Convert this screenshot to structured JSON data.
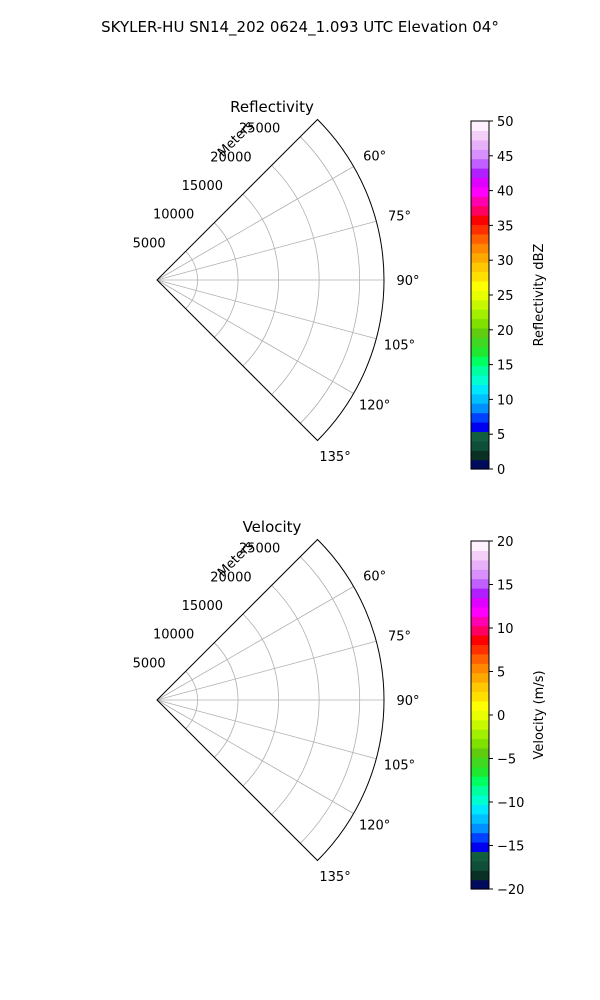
{
  "figure_title": "SKYLER-HU  SN14_202  0624_1.093 UTC Elevation 04°",
  "chart_data": [
    {
      "type": "polar-sector",
      "title": "Reflectivity",
      "range_label": "Meters",
      "range_ticks": [
        5000,
        10000,
        15000,
        20000,
        25000
      ],
      "range_tick_labels": [
        "5000",
        "10000",
        "15000",
        "20000",
        "25000"
      ],
      "rmax": 28000,
      "theta_ticks": [
        60,
        75,
        90,
        105,
        120,
        135
      ],
      "theta_tick_labels": [
        "60°",
        "75°",
        "90°",
        "105°",
        "120°",
        "135°"
      ],
      "theta_range": [
        45,
        135
      ],
      "grid": true,
      "colorbar": {
        "label": "Reflectivity dBZ",
        "min": 0,
        "max": 50,
        "ticks": [
          0,
          5,
          10,
          15,
          20,
          25,
          30,
          35,
          40,
          45,
          50
        ],
        "tick_labels": [
          "0",
          "5",
          "10",
          "15",
          "20",
          "25",
          "30",
          "35",
          "40",
          "45",
          "50"
        ],
        "colors": [
          "#000b5c",
          "#0a2f25",
          "#0f4f3a",
          "#115f3f",
          "#0000f0",
          "#0040ff",
          "#0090ff",
          "#00c0ff",
          "#00e8ff",
          "#00ffd0",
          "#00ffa0",
          "#00ff60",
          "#20e830",
          "#40d820",
          "#60cc10",
          "#80e000",
          "#a0f000",
          "#c8f800",
          "#e8ff00",
          "#ffff00",
          "#ffe000",
          "#ffc800",
          "#ffa800",
          "#ff8800",
          "#ff6000",
          "#ff3000",
          "#ff0000",
          "#ff0060",
          "#ff00b0",
          "#ff00ff",
          "#e000ff",
          "#b020ff",
          "#c060ff",
          "#d890ff",
          "#e8b0f8",
          "#f4d0f8",
          "#fff0ff"
        ]
      }
    },
    {
      "type": "polar-sector",
      "title": "Velocity",
      "range_label": "Meters",
      "range_ticks": [
        5000,
        10000,
        15000,
        20000,
        25000
      ],
      "range_tick_labels": [
        "5000",
        "10000",
        "15000",
        "20000",
        "25000"
      ],
      "rmax": 28000,
      "theta_ticks": [
        60,
        75,
        90,
        105,
        120,
        135
      ],
      "theta_tick_labels": [
        "60°",
        "75°",
        "90°",
        "105°",
        "120°",
        "135°"
      ],
      "theta_range": [
        45,
        135
      ],
      "grid": true,
      "colorbar": {
        "label": "Velocity (m/s)",
        "min": -20,
        "max": 20,
        "ticks": [
          -20,
          -15,
          -10,
          -5,
          0,
          5,
          10,
          15,
          20
        ],
        "tick_labels": [
          "−20",
          "−15",
          "−10",
          "−5",
          "0",
          "5",
          "10",
          "15",
          "20"
        ],
        "colors": [
          "#000b5c",
          "#0a2f25",
          "#0f4f3a",
          "#115f3f",
          "#0000f0",
          "#0040ff",
          "#0090ff",
          "#00c0ff",
          "#00e8ff",
          "#00ffd0",
          "#00ffa0",
          "#00ff60",
          "#20e830",
          "#40d820",
          "#60cc10",
          "#80e000",
          "#a0f000",
          "#c8f800",
          "#e8ff00",
          "#ffff00",
          "#ffe000",
          "#ffc800",
          "#ffa800",
          "#ff8800",
          "#ff6000",
          "#ff3000",
          "#ff0000",
          "#ff0060",
          "#ff00b0",
          "#ff00ff",
          "#e000ff",
          "#b020ff",
          "#c060ff",
          "#d890ff",
          "#e8b0f8",
          "#f4d0f8",
          "#fff0ff"
        ]
      }
    }
  ]
}
